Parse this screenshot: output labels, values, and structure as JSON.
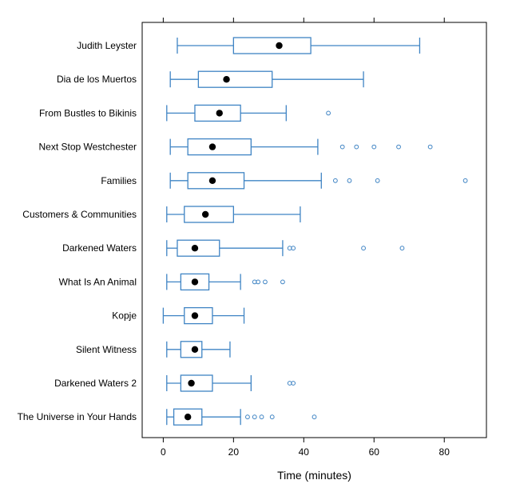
{
  "chart_data": {
    "type": "boxplot",
    "orientation": "horizontal",
    "xlabel": "Time (minutes)",
    "xlim": [
      -6,
      92
    ],
    "xticks": [
      0,
      20,
      40,
      60,
      80
    ],
    "grid": false,
    "colors": {
      "box": "#3f84c4",
      "median": "#000000"
    },
    "categories": [
      "Judith Leyster",
      "Dia de los Muertos",
      "From Bustles to Bikinis",
      "Next Stop Westchester",
      "Families",
      "Customers & Communities",
      "Darkened Waters",
      "What Is An Animal",
      "Kopje",
      "Silent Witness",
      "Darkened Waters 2",
      "The Universe in Your Hands"
    ],
    "boxes": [
      {
        "category": "Judith Leyster",
        "whisker_low": 4,
        "q1": 20,
        "median": 33,
        "q3": 42,
        "whisker_high": 73,
        "outliers": []
      },
      {
        "category": "Dia de los Muertos",
        "whisker_low": 2,
        "q1": 10,
        "median": 18,
        "q3": 31,
        "whisker_high": 57,
        "outliers": []
      },
      {
        "category": "From Bustles to Bikinis",
        "whisker_low": 1,
        "q1": 9,
        "median": 16,
        "q3": 22,
        "whisker_high": 35,
        "outliers": [
          47
        ]
      },
      {
        "category": "Next Stop Westchester",
        "whisker_low": 2,
        "q1": 7,
        "median": 14,
        "q3": 25,
        "whisker_high": 44,
        "outliers": [
          51,
          55,
          60,
          67,
          76
        ]
      },
      {
        "category": "Families",
        "whisker_low": 2,
        "q1": 7,
        "median": 14,
        "q3": 23,
        "whisker_high": 45,
        "outliers": [
          49,
          53,
          61,
          86
        ]
      },
      {
        "category": "Customers & Communities",
        "whisker_low": 1,
        "q1": 6,
        "median": 12,
        "q3": 20,
        "whisker_high": 39,
        "outliers": []
      },
      {
        "category": "Darkened Waters",
        "whisker_low": 1,
        "q1": 4,
        "median": 9,
        "q3": 16,
        "whisker_high": 34,
        "outliers": [
          36,
          37,
          57,
          68
        ]
      },
      {
        "category": "What Is An Animal",
        "whisker_low": 1,
        "q1": 5,
        "median": 9,
        "q3": 13,
        "whisker_high": 22,
        "outliers": [
          26,
          27,
          29,
          34
        ]
      },
      {
        "category": "Kopje",
        "whisker_low": 0,
        "q1": 6,
        "median": 9,
        "q3": 14,
        "whisker_high": 23,
        "outliers": []
      },
      {
        "category": "Silent Witness",
        "whisker_low": 1,
        "q1": 5,
        "median": 9,
        "q3": 11,
        "whisker_high": 19,
        "outliers": []
      },
      {
        "category": "Darkened Waters 2",
        "whisker_low": 1,
        "q1": 5,
        "median": 8,
        "q3": 14,
        "whisker_high": 25,
        "outliers": [
          36,
          37
        ]
      },
      {
        "category": "The Universe in Your Hands",
        "whisker_low": 1,
        "q1": 3,
        "median": 7,
        "q3": 11,
        "whisker_high": 22,
        "outliers": [
          24,
          26,
          28,
          31,
          43
        ]
      }
    ]
  }
}
